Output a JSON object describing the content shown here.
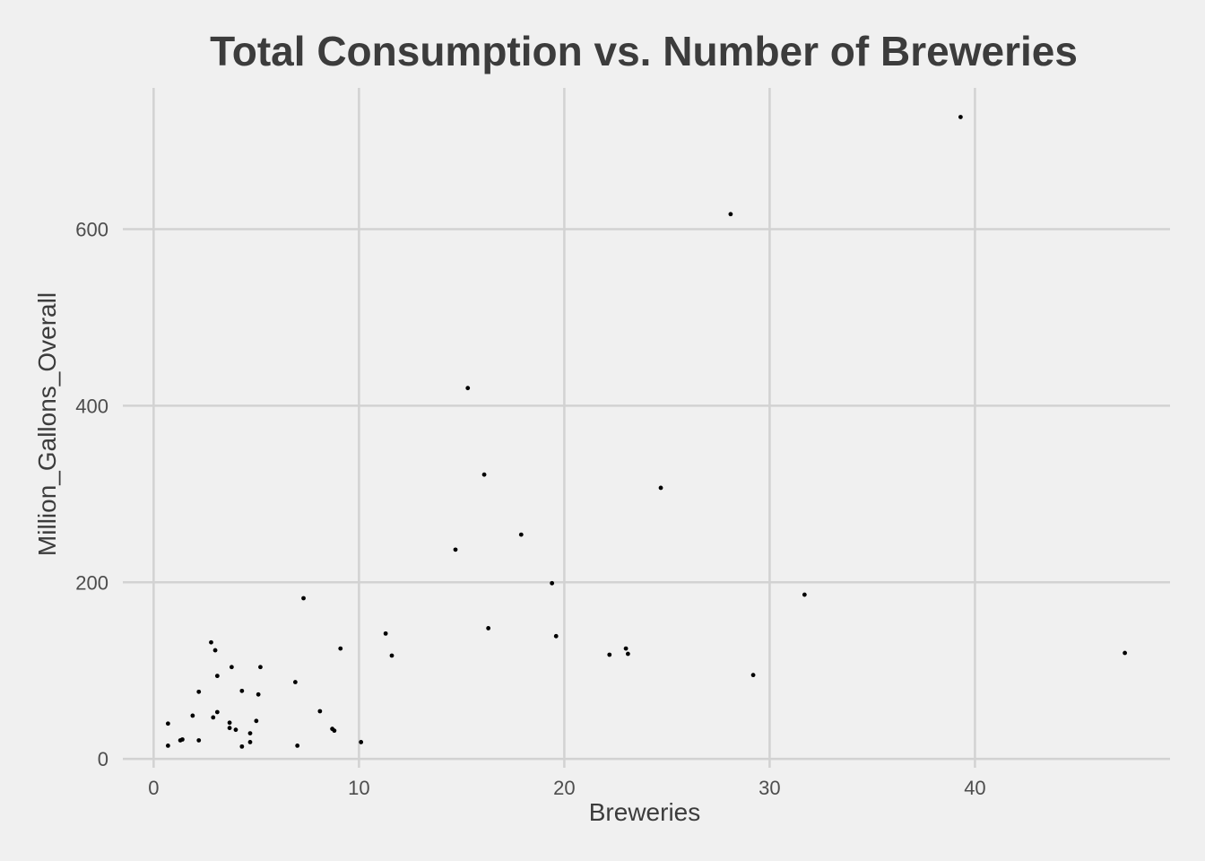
{
  "chart_data": {
    "type": "scatter",
    "title": "Total Consumption vs. Number of Breweries",
    "xlabel": "Breweries",
    "ylabel": "Million_Gallons_Overall",
    "xlim": [
      -1.5,
      49.5
    ],
    "ylim": [
      -10,
      760
    ],
    "xticks": [
      0,
      10,
      20,
      30,
      40
    ],
    "yticks": [
      0,
      200,
      400,
      600
    ],
    "grid": true,
    "legend": "none",
    "colors": {
      "background": "#f0f0f0",
      "grid": "#d2d2d2",
      "point": "#000000",
      "text": "#3c3c3c"
    },
    "points": [
      [
        39.3,
        727
      ],
      [
        28.1,
        617
      ],
      [
        15.3,
        420
      ],
      [
        16.1,
        322
      ],
      [
        24.7,
        307
      ],
      [
        17.9,
        254
      ],
      [
        14.7,
        237
      ],
      [
        19.4,
        199
      ],
      [
        31.7,
        186
      ],
      [
        7.3,
        182
      ],
      [
        16.3,
        148
      ],
      [
        11.3,
        142
      ],
      [
        19.6,
        139
      ],
      [
        2.8,
        132
      ],
      [
        3.0,
        123
      ],
      [
        9.1,
        125
      ],
      [
        23.0,
        125
      ],
      [
        23.1,
        119
      ],
      [
        22.2,
        118
      ],
      [
        47.3,
        120
      ],
      [
        11.6,
        117
      ],
      [
        3.8,
        104
      ],
      [
        5.2,
        104
      ],
      [
        29.2,
        95
      ],
      [
        3.1,
        94
      ],
      [
        6.9,
        87
      ],
      [
        2.2,
        76
      ],
      [
        4.3,
        77
      ],
      [
        5.1,
        73
      ],
      [
        8.1,
        54
      ],
      [
        3.1,
        53
      ],
      [
        1.9,
        49
      ],
      [
        2.9,
        47
      ],
      [
        5.0,
        43
      ],
      [
        3.7,
        41
      ],
      [
        0.7,
        40
      ],
      [
        3.7,
        35
      ],
      [
        4.0,
        33
      ],
      [
        8.7,
        34
      ],
      [
        8.8,
        32
      ],
      [
        4.7,
        29
      ],
      [
        1.4,
        22
      ],
      [
        1.3,
        21
      ],
      [
        2.2,
        21
      ],
      [
        4.7,
        19
      ],
      [
        10.1,
        19
      ],
      [
        0.7,
        15
      ],
      [
        4.3,
        14
      ],
      [
        7.0,
        15
      ]
    ]
  }
}
